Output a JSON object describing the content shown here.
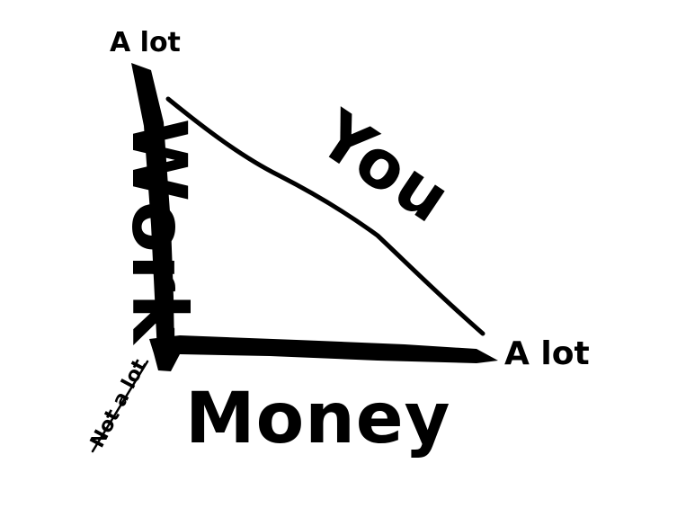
{
  "diagram": {
    "y_axis_label": "Work",
    "y_axis_max_label": "A lot",
    "x_axis_label": "Money",
    "x_axis_max_label": "A lot",
    "origin_label": "Not a lot",
    "curve_label": "You",
    "colors": {
      "ink": "#000000",
      "background": "#ffffff"
    }
  }
}
